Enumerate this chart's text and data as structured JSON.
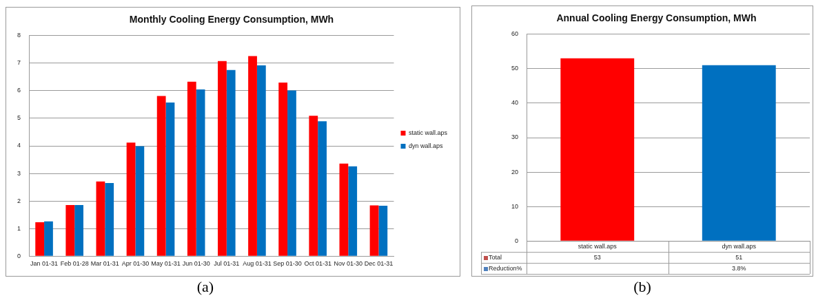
{
  "chart_data": [
    {
      "type": "bar",
      "title": "Monthly Cooling Energy Consumption, MWh",
      "categories": [
        "Jan 01-31",
        "Feb 01-28",
        "Mar 01-31",
        "Apr 01-30",
        "May 01-31",
        "Jun 01-30",
        "Jul 01-31",
        "Aug 01-31",
        "Sep 01-30",
        "Oct 01-31",
        "Nov 01-30",
        "Dec 01-31"
      ],
      "series": [
        {
          "name": "static wall.aps",
          "color": "#ff0000",
          "values": [
            1.23,
            1.85,
            2.71,
            4.12,
            5.81,
            6.33,
            7.08,
            7.26,
            6.3,
            5.09,
            3.36,
            1.84
          ]
        },
        {
          "name": "dyn wall.aps",
          "color": "#0070c0",
          "values": [
            1.26,
            1.85,
            2.65,
            3.99,
            5.57,
            6.05,
            6.75,
            6.92,
            6.01,
            4.89,
            3.26,
            1.83
          ]
        }
      ],
      "ylim": [
        0,
        8
      ],
      "yticks": [
        0,
        1,
        2,
        3,
        4,
        5,
        6,
        7,
        8
      ],
      "grid": "y",
      "legend": "right",
      "annotations": [
        "(a)"
      ]
    },
    {
      "type": "bar",
      "title": "Annual Cooling Energy Consumption, MWh",
      "categories": [
        "static wall.aps",
        "dyn wall.aps"
      ],
      "series": [
        {
          "name": "Total",
          "color": "#c0504d",
          "colors": [
            "#ff0000",
            "#0070c0"
          ],
          "values": [
            53,
            51
          ]
        }
      ],
      "ylim": [
        0,
        60
      ],
      "yticks": [
        0,
        10,
        20,
        30,
        40,
        50,
        60
      ],
      "grid": "y",
      "data_labels": true,
      "annotations": [
        "Reduction%",
        "3.8%",
        "(b)"
      ]
    }
  ]
}
